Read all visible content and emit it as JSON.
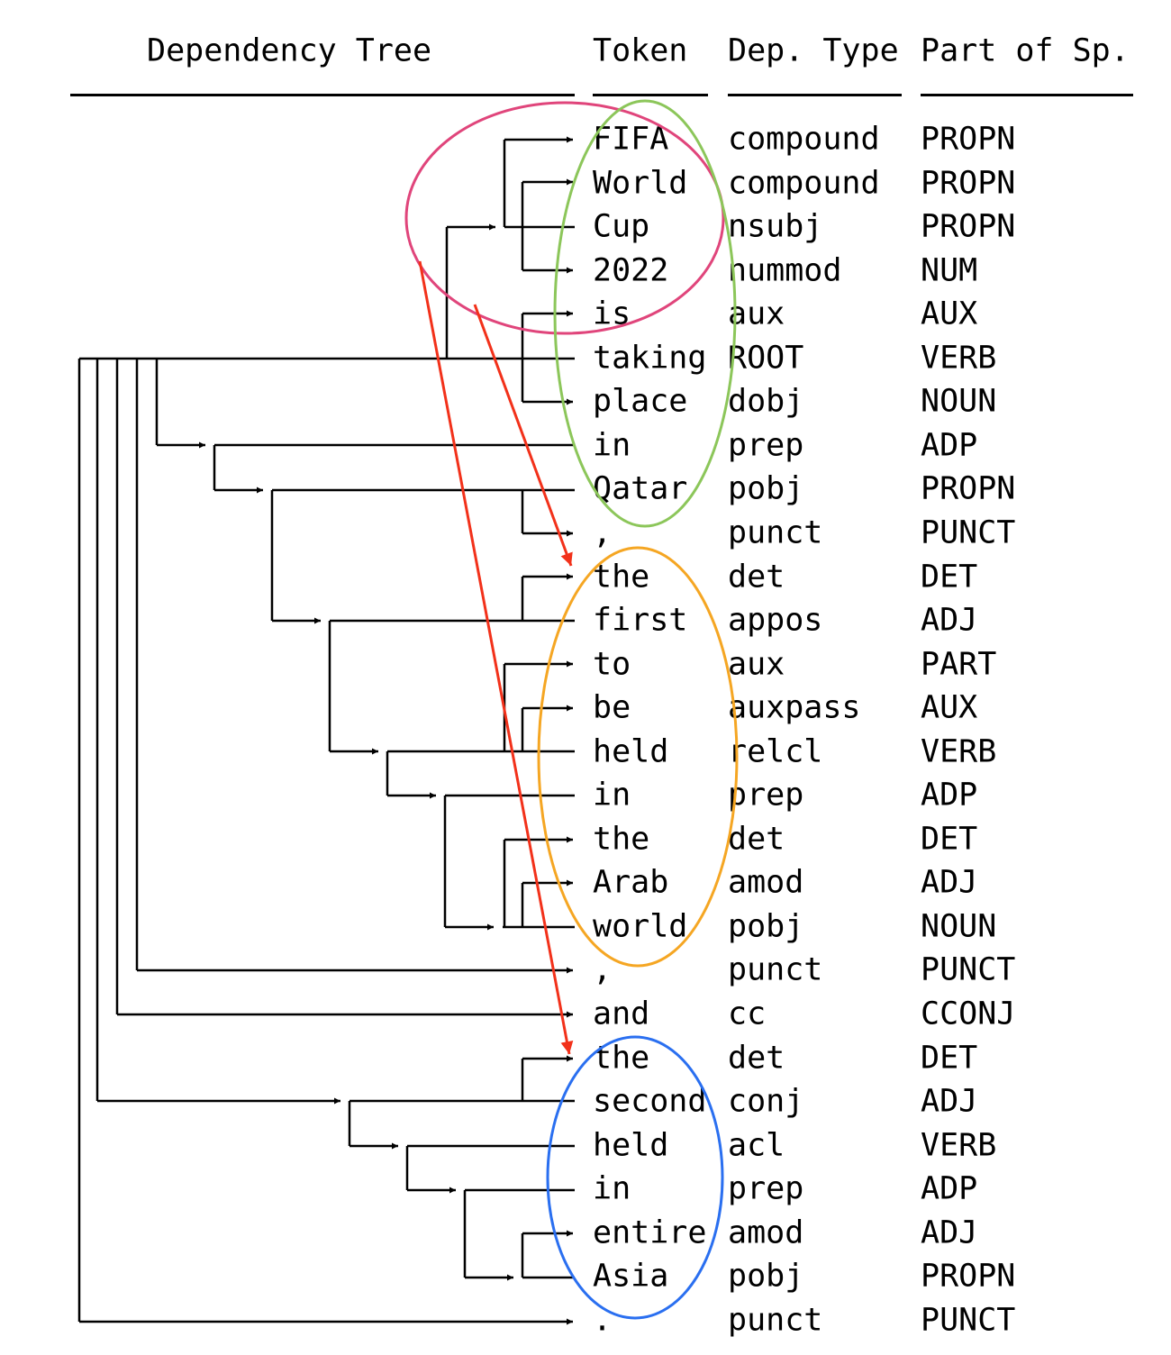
{
  "headers": {
    "tree": "Dependency Tree",
    "token": "Token",
    "dep": "Dep. Type",
    "pos": "Part of Sp."
  },
  "rows": [
    {
      "token": "FIFA",
      "dep": "compound",
      "pos": "PROPN",
      "head": 2
    },
    {
      "token": "World",
      "dep": "compound",
      "pos": "PROPN",
      "head": 2
    },
    {
      "token": "Cup",
      "dep": "nsubj",
      "pos": "PROPN",
      "head": 5
    },
    {
      "token": "2022",
      "dep": "nummod",
      "pos": "NUM",
      "head": 2
    },
    {
      "token": "is",
      "dep": "aux",
      "pos": "AUX",
      "head": 5
    },
    {
      "token": "taking",
      "dep": "ROOT",
      "pos": "VERB",
      "head": null
    },
    {
      "token": "place",
      "dep": "dobj",
      "pos": "NOUN",
      "head": 5
    },
    {
      "token": "in",
      "dep": "prep",
      "pos": "ADP",
      "head": 5
    },
    {
      "token": "Qatar",
      "dep": "pobj",
      "pos": "PROPN",
      "head": 7
    },
    {
      "token": ",",
      "dep": "punct",
      "pos": "PUNCT",
      "head": 8
    },
    {
      "token": "the",
      "dep": "det",
      "pos": "DET",
      "head": 11
    },
    {
      "token": "first",
      "dep": "appos",
      "pos": "ADJ",
      "head": 8
    },
    {
      "token": "to",
      "dep": "aux",
      "pos": "PART",
      "head": 14
    },
    {
      "token": "be",
      "dep": "auxpass",
      "pos": "AUX",
      "head": 14
    },
    {
      "token": "held",
      "dep": "relcl",
      "pos": "VERB",
      "head": 11
    },
    {
      "token": "in",
      "dep": "prep",
      "pos": "ADP",
      "head": 14
    },
    {
      "token": "the",
      "dep": "det",
      "pos": "DET",
      "head": 18
    },
    {
      "token": "Arab",
      "dep": "amod",
      "pos": "ADJ",
      "head": 18
    },
    {
      "token": "world",
      "dep": "pobj",
      "pos": "NOUN",
      "head": 15
    },
    {
      "token": ",",
      "dep": "punct",
      "pos": "PUNCT",
      "head": 5
    },
    {
      "token": "and",
      "dep": "cc",
      "pos": "CCONJ",
      "head": 5
    },
    {
      "token": "the",
      "dep": "det",
      "pos": "DET",
      "head": 22
    },
    {
      "token": "second",
      "dep": "conj",
      "pos": "ADJ",
      "head": 5
    },
    {
      "token": "held",
      "dep": "acl",
      "pos": "VERB",
      "head": 22
    },
    {
      "token": "in",
      "dep": "prep",
      "pos": "ADP",
      "head": 23
    },
    {
      "token": "entire",
      "dep": "amod",
      "pos": "ADJ",
      "head": 25
    },
    {
      "token": "Asia",
      "dep": "pobj",
      "pos": "PROPN",
      "head": 24
    },
    {
      "token": ".",
      "dep": "punct",
      "pos": "PUNCT",
      "head": 5
    }
  ],
  "annotations": {
    "ellipses": [
      {
        "name": "subject-group-ellipse",
        "color": "#e0457b"
      },
      {
        "name": "main-clause-ellipse",
        "color": "#8cc65a"
      },
      {
        "name": "first-appos-ellipse",
        "color": "#f5a623"
      },
      {
        "name": "second-conj-ellipse",
        "color": "#2a6ff0"
      }
    ],
    "arrow_color": "#f2311a"
  }
}
